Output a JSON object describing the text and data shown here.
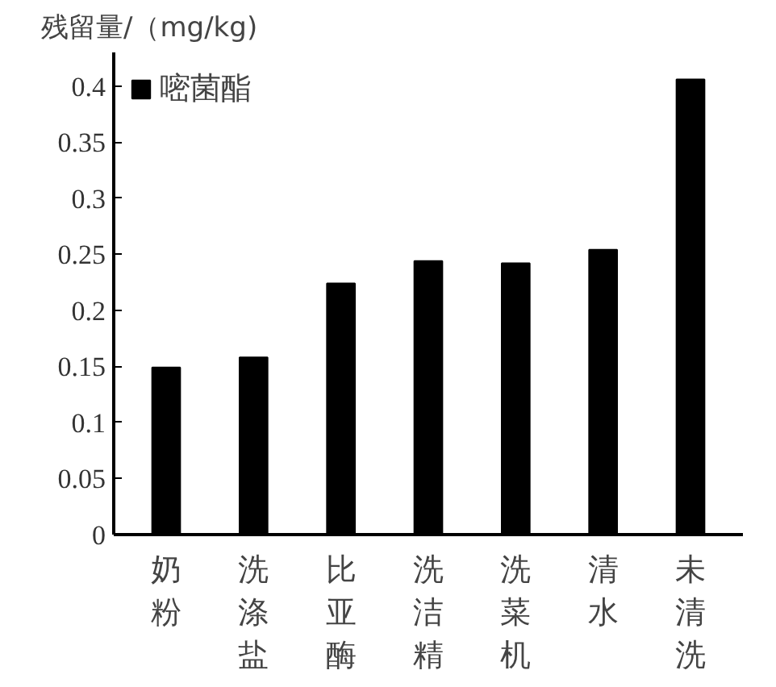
{
  "chart_data": {
    "type": "bar",
    "ylabel": "残留量/（mg/kg)",
    "categories": [
      "奶粉",
      "洗涤盐",
      "比亚酶",
      "洗洁精",
      "洗菜机",
      "清水",
      "未清洗"
    ],
    "series": [
      {
        "name": "嘧菌酯",
        "color": "#000000",
        "values": [
          0.149,
          0.158,
          0.224,
          0.244,
          0.242,
          0.254,
          0.406
        ]
      }
    ],
    "ylim": [
      0,
      0.43
    ],
    "yticks": [
      0,
      0.05,
      0.1,
      0.15,
      0.2,
      0.25,
      0.3,
      0.35,
      0.4
    ],
    "grid": false,
    "legend": "top left"
  }
}
